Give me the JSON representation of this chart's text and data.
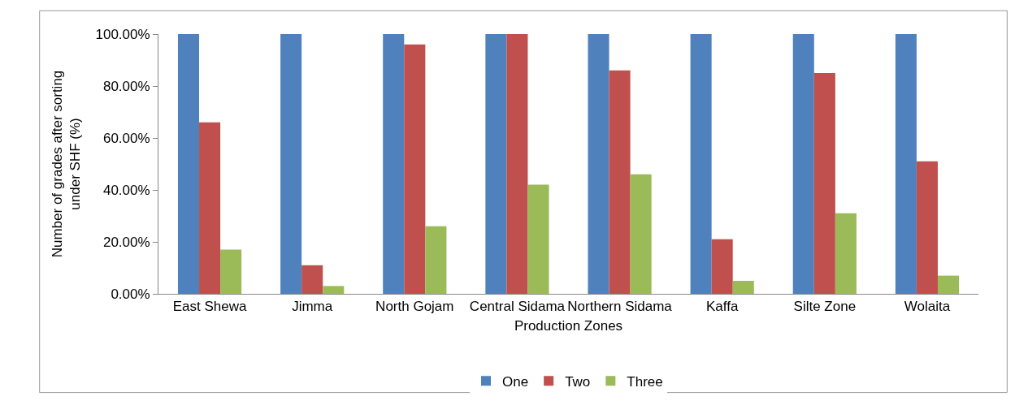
{
  "chart_data": {
    "type": "bar",
    "xlabel": "Production Zones",
    "ylabel": "Number of grades after sorting under SHF (%)",
    "categories": [
      "East Shewa",
      "Jimma",
      "North Gojam",
      "Central Sidama",
      "Northern Sidama",
      "Kaffa",
      "Silte Zone",
      "Wolaita"
    ],
    "series": [
      {
        "name": "One",
        "color": "#4f81bd",
        "values": [
          100,
          100,
          100,
          100,
          100,
          100,
          100,
          100
        ]
      },
      {
        "name": "Two",
        "color": "#c0504d",
        "values": [
          66,
          11,
          96,
          100,
          86,
          21,
          85,
          51
        ]
      },
      {
        "name": "Three",
        "color": "#9bbb59",
        "values": [
          17,
          3,
          26,
          42,
          46,
          5,
          31,
          7
        ]
      }
    ],
    "ylim": [
      0,
      100
    ],
    "yticks": [
      {
        "value": 0,
        "label": "0.00%"
      },
      {
        "value": 20,
        "label": "20.00%"
      },
      {
        "value": 40,
        "label": "40.00%"
      },
      {
        "value": 60,
        "label": "60.00%"
      },
      {
        "value": 80,
        "label": "80.00%"
      },
      {
        "value": 100,
        "label": "100.00%"
      }
    ],
    "grid": false,
    "legend": "bottom"
  }
}
